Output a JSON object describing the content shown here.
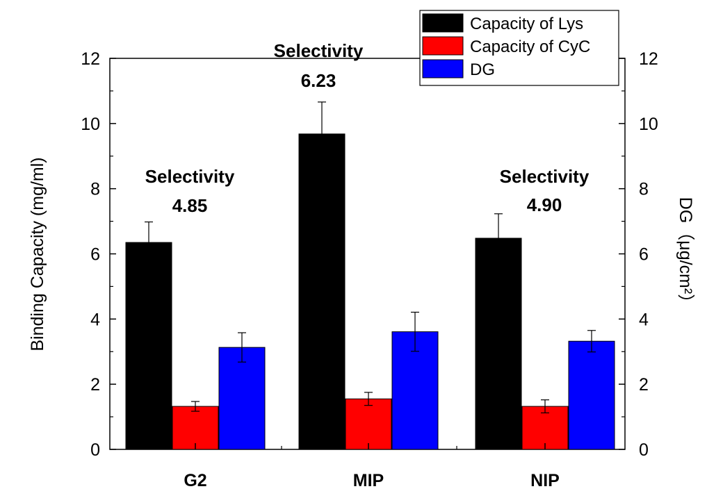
{
  "chart_data": {
    "type": "bar",
    "categories": [
      "G2",
      "MIP",
      "NIP"
    ],
    "series": [
      {
        "name": "Capacity of Lys",
        "color": "#000000",
        "values": [
          6.35,
          9.68,
          6.48
        ],
        "errors": [
          0.63,
          0.98,
          0.75
        ],
        "axis": "left"
      },
      {
        "name": "Capacity of CyC",
        "color": "#ff0000",
        "values": [
          1.32,
          1.55,
          1.32
        ],
        "errors": [
          0.15,
          0.2,
          0.2
        ],
        "axis": "left"
      },
      {
        "name": "DG",
        "color": "#0000ff",
        "values": [
          3.13,
          3.61,
          3.32
        ],
        "errors": [
          0.45,
          0.6,
          0.33
        ],
        "axis": "right"
      }
    ],
    "ylabel": "Binding Capacity (mg/ml)",
    "y2label": "DG（μg/cm²）",
    "ylim": [
      0,
      12
    ],
    "y2lim": [
      0,
      12
    ],
    "yticks": [
      "0",
      "2",
      "4",
      "6",
      "8",
      "10",
      "12"
    ],
    "y2ticks": [
      "0",
      "2",
      "4",
      "6",
      "8",
      "10",
      "12"
    ],
    "annotations": [
      {
        "category": "G2",
        "label": "Selectivity",
        "value": "4.85"
      },
      {
        "category": "MIP",
        "label": "Selectivity",
        "value": "6.23"
      },
      {
        "category": "NIP",
        "label": "Selectivity",
        "value": "4.90"
      }
    ],
    "legend_position": "top-right",
    "grid": false
  }
}
